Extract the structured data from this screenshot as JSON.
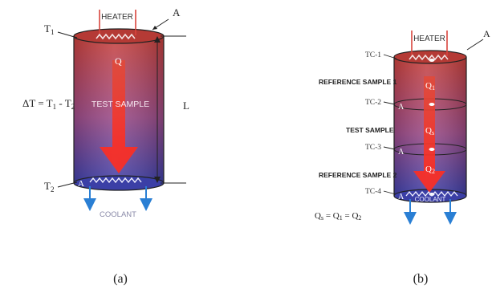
{
  "figure_a": {
    "caption": "(a)",
    "heater": "HEATER",
    "area_label": "A",
    "t1": "T",
    "t1_sub": "1",
    "q_label": "Q",
    "delta_t": "ΔT = T",
    "delta_t_sub1": "1",
    "delta_t_mid": " - T",
    "delta_t_sub2": "2",
    "test_sample": "TEST SAMPLE",
    "length_label": "L",
    "t2": "T",
    "t2_sub": "2",
    "bottom_area": "A",
    "coolant": "COOLANT"
  },
  "figure_b": {
    "caption": "(b)",
    "heater": "HEATER",
    "area_label": "A",
    "tc1": "TC-1",
    "tc2": "TC-2",
    "tc3": "TC-3",
    "tc4": "TC-4",
    "ref1": "REFERENCE SAMPLE 1",
    "test_sample": "TEST SAMPLE",
    "ref2": "REFERENCE SAMPLE 2",
    "q1": "Q",
    "q1_sub": "1",
    "qs": "Q",
    "qs_sub": "s",
    "q2": "Q",
    "q2_sub": "2",
    "sec_a": "A",
    "coolant": "COOLANT",
    "equation_q": "Q",
    "equation_sub_s": "s",
    "equation_eq1": " = Q",
    "equation_sub_1": "1",
    "equation_eq2": " = Q",
    "equation_sub_2": "2"
  },
  "colors": {
    "top": "#c0392b",
    "bottom": "#3b3fa6",
    "arrow": "#e8392f",
    "coolant_arrow": "#2a7fd4"
  }
}
